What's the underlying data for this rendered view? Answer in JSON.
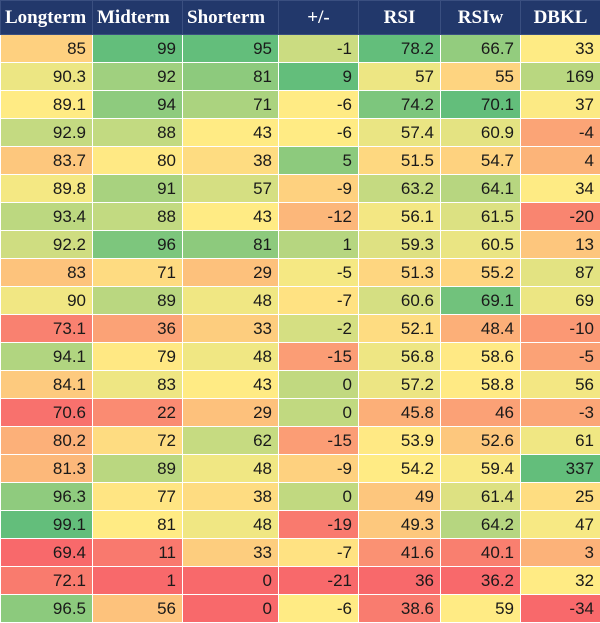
{
  "table": {
    "columns": [
      "Longterm",
      "Midterm",
      "Shorterm",
      "+/-",
      "RSI",
      "RSIw",
      "DBKL"
    ],
    "rows": [
      [
        85,
        99,
        95,
        -1,
        78.2,
        66.7,
        33
      ],
      [
        90.3,
        92,
        81,
        9,
        57,
        55,
        169
      ],
      [
        89.1,
        94,
        71,
        -6,
        74.2,
        70.1,
        37
      ],
      [
        92.9,
        88,
        43,
        -6,
        57.4,
        60.9,
        -4
      ],
      [
        83.7,
        80,
        38,
        5,
        51.5,
        54.7,
        4
      ],
      [
        89.8,
        91,
        57,
        -9,
        63.2,
        64.1,
        34
      ],
      [
        93.4,
        88,
        43,
        -12,
        56.1,
        61.5,
        -20
      ],
      [
        92.2,
        96,
        81,
        1,
        59.3,
        60.5,
        13
      ],
      [
        83,
        71,
        29,
        -5,
        51.3,
        55.2,
        87
      ],
      [
        90,
        89,
        48,
        -7,
        60.6,
        69.1,
        69
      ],
      [
        73.1,
        36,
        33,
        -2,
        52.1,
        48.4,
        -10
      ],
      [
        94.1,
        79,
        48,
        -15,
        56.8,
        58.6,
        -5
      ],
      [
        84.1,
        83,
        43,
        0,
        57.2,
        58.8,
        56
      ],
      [
        70.6,
        22,
        29,
        0,
        45.8,
        46,
        -3
      ],
      [
        80.2,
        72,
        62,
        -15,
        53.9,
        52.6,
        61
      ],
      [
        81.3,
        89,
        48,
        -9,
        54.2,
        59.4,
        337
      ],
      [
        96.3,
        77,
        38,
        0,
        49,
        61.4,
        25
      ],
      [
        99.1,
        81,
        48,
        -19,
        49.3,
        64.2,
        47
      ],
      [
        69.4,
        11,
        33,
        -7,
        41.6,
        40.1,
        3
      ],
      [
        72.1,
        1,
        0,
        -21,
        36,
        36.2,
        32
      ],
      [
        96.5,
        56,
        0,
        -6,
        38.6,
        59,
        -34
      ]
    ]
  },
  "colors": {
    "header_bg": "#22386b",
    "header_text": "#ffffff",
    "scale_low": "#f8696b",
    "scale_mid": "#ffeb84",
    "scale_high": "#63be7b"
  }
}
